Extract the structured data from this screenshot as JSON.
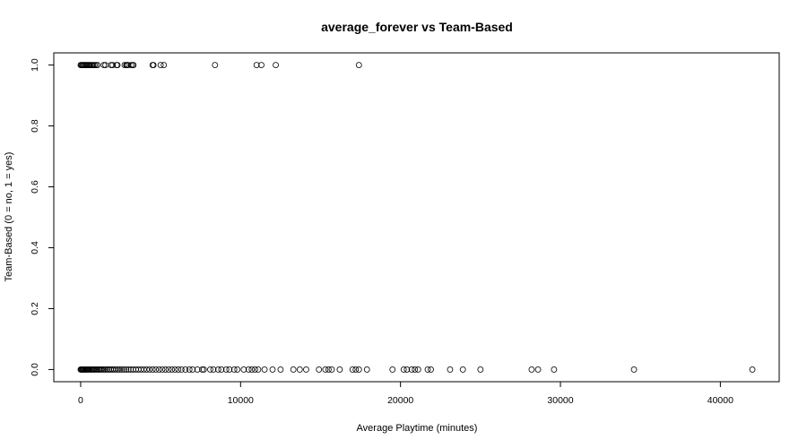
{
  "chart_data": {
    "type": "scatter",
    "title": "average_forever vs Team-Based",
    "xlabel": "Average Playtime (minutes)",
    "ylabel": "Team-Based (0 = no, 1 = yes)",
    "xlim": [
      -1680,
      43680
    ],
    "ylim": [
      -0.04,
      1.04
    ],
    "x_ticks": [
      0,
      10000,
      20000,
      30000,
      40000
    ],
    "x_tick_labels": [
      "0",
      "10000",
      "20000",
      "30000",
      "40000"
    ],
    "y_ticks": [
      0.0,
      0.2,
      0.4,
      0.6,
      0.8,
      1.0
    ],
    "y_tick_labels": [
      "0.0",
      "0.2",
      "0.4",
      "0.6",
      "0.8",
      "1.0"
    ],
    "grid": false,
    "legend": "none",
    "marker": "open-circle",
    "points": {
      "team_based_yes": {
        "y": 1,
        "x": [
          0,
          50,
          100,
          150,
          200,
          260,
          320,
          380,
          440,
          500,
          560,
          620,
          700,
          780,
          860,
          950,
          1050,
          1450,
          1550,
          1900,
          2000,
          2250,
          2300,
          2750,
          2850,
          2900,
          2950,
          3150,
          3250,
          3300,
          4500,
          4550,
          5000,
          5200,
          8400,
          11000,
          11300,
          12200,
          17400
        ]
      },
      "team_based_no": {
        "y": 0,
        "x": [
          0,
          40,
          80,
          120,
          160,
          200,
          250,
          300,
          350,
          400,
          450,
          500,
          560,
          620,
          680,
          740,
          800,
          870,
          940,
          1010,
          1080,
          1150,
          1230,
          1310,
          1400,
          1490,
          1580,
          1680,
          1780,
          1880,
          1990,
          2100,
          2210,
          2330,
          2450,
          2580,
          2710,
          2850,
          2990,
          3140,
          3290,
          3450,
          3610,
          3780,
          3950,
          4130,
          4310,
          4500,
          4700,
          4900,
          5100,
          5300,
          5500,
          5700,
          5900,
          6100,
          6300,
          6550,
          6800,
          7000,
          7300,
          7600,
          7700,
          8100,
          8300,
          8600,
          8800,
          9100,
          9300,
          9600,
          9800,
          10200,
          10500,
          10700,
          10900,
          11100,
          11500,
          12000,
          12500,
          13300,
          13700,
          14100,
          14900,
          15300,
          15500,
          15700,
          16200,
          17000,
          17200,
          17400,
          17900,
          19500,
          20200,
          20400,
          20700,
          20900,
          21100,
          21700,
          21900,
          23100,
          23900,
          25000,
          28200,
          28600,
          29600,
          34600,
          42000
        ]
      }
    }
  }
}
